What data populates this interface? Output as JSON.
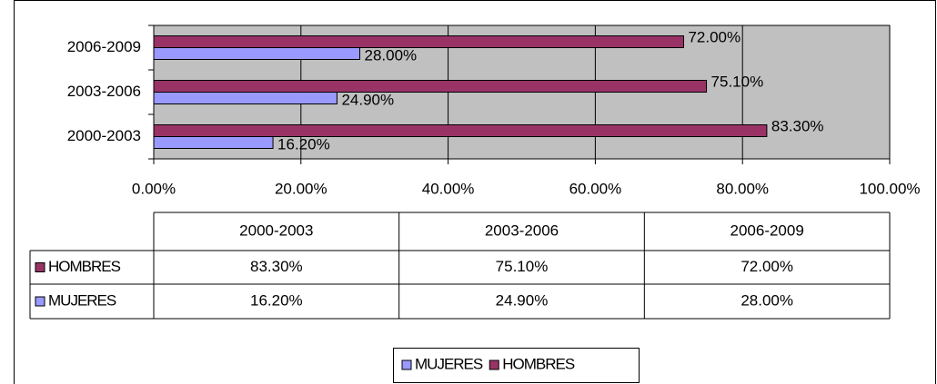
{
  "chart_data": {
    "type": "barh",
    "categories": [
      "2000-2003",
      "2003-2006",
      "2006-2009"
    ],
    "series": [
      {
        "name": "MUJERES",
        "color": "#9999ff",
        "values": [
          16.2,
          24.9,
          28.0
        ],
        "value_labels": [
          "16.20%",
          "24.90%",
          "28.00%"
        ]
      },
      {
        "name": "HOMBRES",
        "color": "#993366",
        "values": [
          83.3,
          75.1,
          72.0
        ],
        "value_labels": [
          "83.30%",
          "75.10%",
          "72.00%"
        ]
      }
    ],
    "xlim": [
      0,
      100
    ],
    "xticks": [
      {
        "value": 0,
        "label": "0.00%"
      },
      {
        "value": 20,
        "label": "20.00%"
      },
      {
        "value": 40,
        "label": "40.00%"
      },
      {
        "value": 60,
        "label": "60.00%"
      },
      {
        "value": 80,
        "label": "80.00%"
      },
      {
        "value": 100,
        "label": "100.00%"
      }
    ],
    "grid": true,
    "legend": "bottom",
    "plot_background": "#c0c0c0"
  }
}
